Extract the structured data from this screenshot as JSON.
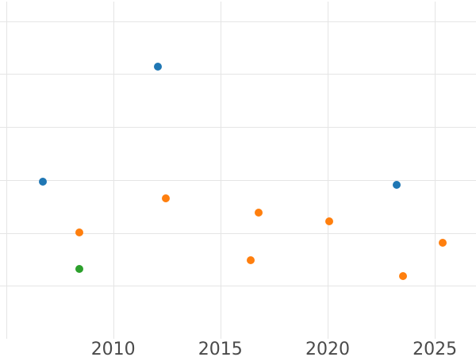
{
  "chart_data": {
    "type": "scatter",
    "title": "",
    "xlabel": "",
    "ylabel": "",
    "grid": true,
    "legend_visible": false,
    "y_axis_labels_visible": false,
    "x_axis": {
      "min": 2004.72,
      "max": 2026.92,
      "gridline_values": [
        2005,
        2010,
        2015,
        2020,
        2025
      ],
      "ticks": [
        {
          "value": 2010,
          "label": "2010"
        },
        {
          "value": 2015,
          "label": "2015"
        },
        {
          "value": 2020,
          "label": "2020"
        },
        {
          "value": 2025,
          "label": "2025"
        }
      ]
    },
    "y_axis": {
      "min": 0,
      "max": 6.37,
      "gridline_values": [
        1,
        2,
        3,
        4,
        5,
        6
      ],
      "note": "y tick labels not visible in image; values in gridline units"
    },
    "series": [
      {
        "name": "blue-series",
        "color": "#1f77b4",
        "points": [
          {
            "x": 2006.72,
            "y": 2.97
          },
          {
            "x": 2012.09,
            "y": 5.14
          },
          {
            "x": 2023.21,
            "y": 2.91
          }
        ]
      },
      {
        "name": "orange-series",
        "color": "#ff7f0e",
        "points": [
          {
            "x": 2008.43,
            "y": 2.01
          },
          {
            "x": 2012.44,
            "y": 2.66
          },
          {
            "x": 2016.4,
            "y": 1.48
          },
          {
            "x": 2016.77,
            "y": 2.39
          },
          {
            "x": 2020.07,
            "y": 2.22
          },
          {
            "x": 2023.52,
            "y": 1.18
          },
          {
            "x": 2025.38,
            "y": 1.82
          }
        ]
      },
      {
        "name": "green-series",
        "color": "#2ca02c",
        "points": [
          {
            "x": 2008.43,
            "y": 1.32
          }
        ]
      }
    ],
    "colors": {
      "background": "#ffffff",
      "gridline": "#e5e5e5",
      "tick_label": "#4a4a4a"
    }
  }
}
